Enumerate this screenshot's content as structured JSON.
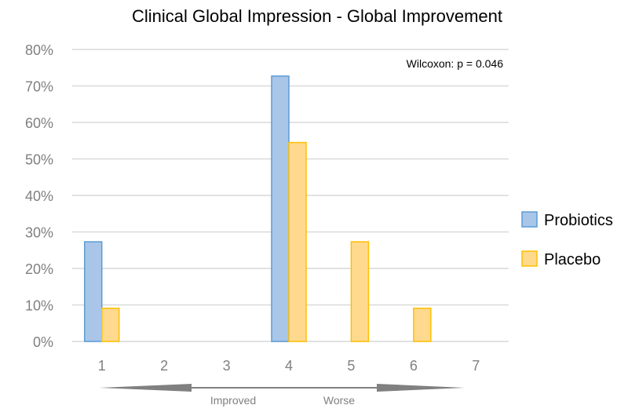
{
  "chart_data": {
    "type": "bar",
    "title": "Clinical Global Impression - Global Improvement",
    "annotation": "Wilcoxon: p = 0.046",
    "categories": [
      "1",
      "2",
      "3",
      "4",
      "5",
      "6",
      "7"
    ],
    "series": [
      {
        "name": "Probiotics",
        "values": [
          27.3,
          0,
          0,
          72.7,
          0,
          0,
          0
        ],
        "fill": "#a9c6e8",
        "stroke": "#5b9bd5"
      },
      {
        "name": "Placebo",
        "values": [
          9.1,
          0,
          0,
          54.5,
          27.3,
          9.1,
          0
        ],
        "fill": "#ffd98e",
        "stroke": "#ffc000"
      }
    ],
    "ylim": [
      0,
      80
    ],
    "yticks": [
      "0%",
      "10%",
      "20%",
      "30%",
      "40%",
      "50%",
      "60%",
      "70%",
      "80%"
    ],
    "xlabel_left": "Improved",
    "xlabel_right": "Worse",
    "grid": true,
    "legend": "right"
  }
}
